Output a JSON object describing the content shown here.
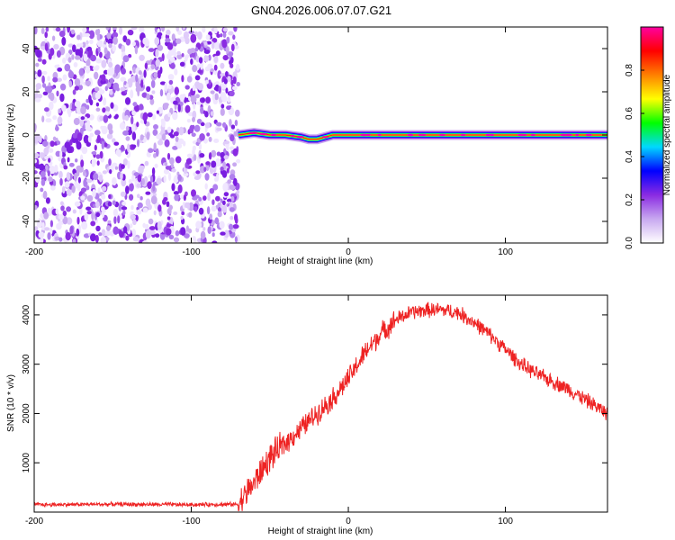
{
  "chart_data": [
    {
      "type": "heatmap",
      "title": "GN04.2026.006.07.07.G21",
      "xlabel": "Height of straight line (km)",
      "ylabel": "Frequency (Hz)",
      "xlim": [
        -200,
        165
      ],
      "ylim": [
        -50,
        50
      ],
      "xticks": [
        -200,
        -100,
        0,
        100
      ],
      "yticks": [
        -40,
        -20,
        0,
        20,
        40
      ],
      "noise_region_x": [
        -200,
        -70
      ],
      "signal_trace": {
        "x": [
          -70,
          -60,
          -50,
          -40,
          -30,
          -25,
          -20,
          -15,
          -10,
          -5,
          0,
          20,
          50,
          80,
          100,
          130,
          165
        ],
        "y": [
          0,
          1,
          0,
          0,
          -1,
          -2,
          -2,
          -1,
          0,
          0,
          0,
          0,
          0,
          0,
          0,
          0,
          0
        ]
      },
      "colorbar": {
        "label": "Normalized spectral amplitude",
        "ticks": [
          0.0,
          0.2,
          0.4,
          0.6,
          0.8
        ],
        "tick_labels": [
          "0.0",
          "0.2",
          "0.4",
          "0.6",
          "0.8"
        ],
        "colors": [
          "#ffffff",
          "#c8a8f0",
          "#8a2be2",
          "#0000ff",
          "#00d8ff",
          "#00ff00",
          "#ffff00",
          "#ff8000",
          "#ff0000",
          "#ff00a0"
        ]
      }
    },
    {
      "type": "line",
      "xlabel": "Height of straight line (km)",
      "ylabel": "SNR (10 * v/v)",
      "xlim": [
        -200,
        165
      ],
      "ylim": [
        0,
        4400
      ],
      "xticks": [
        -200,
        -100,
        0,
        100
      ],
      "yticks": [
        1000,
        2000,
        3000,
        4000
      ],
      "series": [
        {
          "name": "SNR",
          "color": "#ee2222",
          "x": [
            -200,
            -150,
            -100,
            -70,
            -60,
            -50,
            -40,
            -30,
            -20,
            -10,
            0,
            10,
            20,
            30,
            40,
            50,
            60,
            70,
            80,
            90,
            100,
            110,
            120,
            130,
            140,
            150,
            160,
            165
          ],
          "y": [
            150,
            160,
            150,
            160,
            600,
            1100,
            1400,
            1700,
            2000,
            2300,
            2700,
            3200,
            3600,
            3900,
            4050,
            4100,
            4100,
            4050,
            3850,
            3600,
            3300,
            3000,
            2800,
            2650,
            2500,
            2300,
            2100,
            2000
          ]
        }
      ]
    }
  ]
}
